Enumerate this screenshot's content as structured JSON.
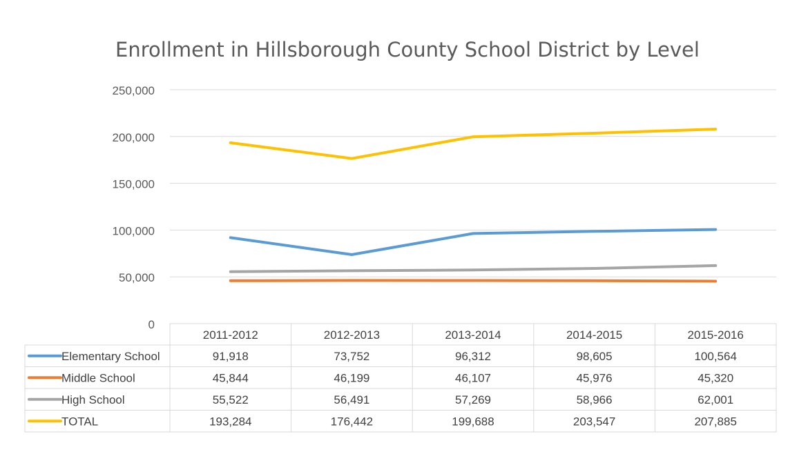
{
  "chart_data": {
    "type": "line",
    "title": "Enrollment in Hillsborough County School District by Level",
    "categories": [
      "2011-2012",
      "2012-2013",
      "2013-2014",
      "2014-2015",
      "2015-2016"
    ],
    "ylim": [
      0,
      250000
    ],
    "yticks": [
      "0",
      "50,000",
      "100,000",
      "150,000",
      "200,000",
      "250,000"
    ],
    "grid": true,
    "legend": "data-table",
    "series": [
      {
        "name": "Elementary School",
        "color": "#5B9BD5",
        "values": [
          91918,
          73752,
          96312,
          98605,
          100564
        ],
        "labels": [
          "91,918",
          "73,752",
          "96,312",
          "98,605",
          "100,564"
        ]
      },
      {
        "name": "Middle School",
        "color": "#ED7D31",
        "values": [
          45844,
          46199,
          46107,
          45976,
          45320
        ],
        "labels": [
          "45,844",
          "46,199",
          "46,107",
          "45,976",
          "45,320"
        ]
      },
      {
        "name": "High School",
        "color": "#A5A5A5",
        "values": [
          55522,
          56491,
          57269,
          58966,
          62001
        ],
        "labels": [
          "55,522",
          "56,491",
          "57,269",
          "58,966",
          "62,001"
        ]
      },
      {
        "name": "TOTAL",
        "color": "#FFC000",
        "values": [
          193284,
          176442,
          199688,
          203547,
          207885
        ],
        "labels": [
          "193,284",
          "176,442",
          "199,688",
          "203,547",
          "207,885"
        ]
      }
    ]
  }
}
